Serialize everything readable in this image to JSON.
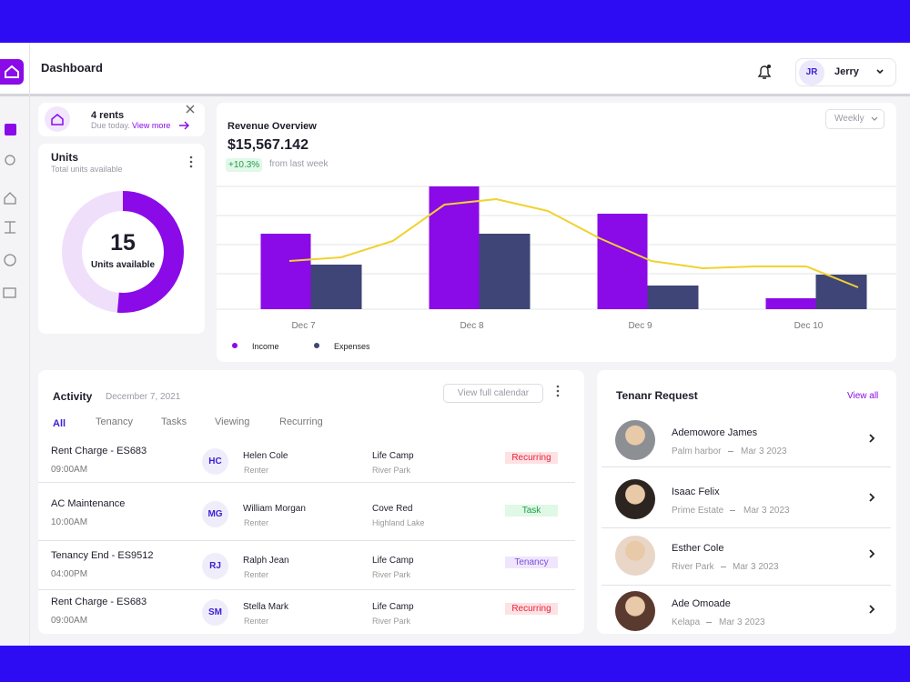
{
  "header": {
    "title": "Dashboard",
    "user_initials": "JR",
    "user_name": "Jerry"
  },
  "rent_notice": {
    "title": "4 rents",
    "subtitle": "Due today.",
    "link": "View more"
  },
  "units": {
    "title": "Units",
    "subtitle": "Total units available",
    "value": 15,
    "label": "Units available"
  },
  "revenue": {
    "title": "Revenue Overview",
    "total": "$15,567.142",
    "change": "+10.3%",
    "change_note": "from last week",
    "period": "Weekly",
    "chart_data": {
      "type": "bar",
      "categories": [
        "Dec 7",
        "Dec 8",
        "Dec 9",
        "Dec 10"
      ],
      "series": [
        {
          "name": "Income",
          "color": "#8a0ae8",
          "values": [
            83,
            135,
            105,
            12
          ]
        },
        {
          "name": "Expenses",
          "color": "#3f4576",
          "values": [
            49,
            83,
            26,
            38
          ]
        }
      ],
      "trend": {
        "color": "#f0d230",
        "values": [
          53,
          57,
          75,
          115,
          121,
          108,
          78,
          53,
          45,
          47,
          47,
          24
        ]
      },
      "ylim": [
        0,
        140
      ],
      "gridlines": [
        39,
        71,
        103,
        135
      ],
      "grid": true
    }
  },
  "activity": {
    "title": "Activity",
    "date": "December 7, 2021",
    "button": "View full calendar",
    "tabs": [
      "All",
      "Tenancy",
      "Tasks",
      "Viewing",
      "Recurring"
    ],
    "rows": [
      {
        "title": "Rent Charge - ES683",
        "time": "09:00AM",
        "initials": "HC",
        "person": "Helen Cole",
        "role": "Renter",
        "location": "Life Camp",
        "area": "River Park",
        "tag": "Recurring",
        "tag_color": "#e8243a",
        "tag_bg": "#fde1e3"
      },
      {
        "title": "AC Maintenance",
        "time": "10:00AM",
        "initials": "MG",
        "person": "William Morgan",
        "role": "Renter",
        "location": "Cove Red",
        "area": "Highland Lake",
        "tag": "Task",
        "tag_color": "#1f9d4a",
        "tag_bg": "#e0f8e6"
      },
      {
        "title": "Tenancy End - ES9512",
        "time": "04:00PM",
        "initials": "RJ",
        "person": "Ralph Jean",
        "role": "Renter",
        "location": "Life Camp",
        "area": "River Park",
        "tag": "Tenancy",
        "tag_color": "#7b4fd8",
        "tag_bg": "#efe6fd"
      },
      {
        "title": "Rent Charge - ES683",
        "time": "09:00AM",
        "initials": "SM",
        "person": "Stella Mark",
        "role": "Renter",
        "location": "Life Camp",
        "area": "River Park",
        "tag": "Recurring",
        "tag_color": "#e8243a",
        "tag_bg": "#fde1e3"
      }
    ]
  },
  "tenant_requests": {
    "title": "Tenanr Request",
    "link": "View all",
    "items": [
      {
        "name": "Ademowore James",
        "place": "Palm harbor",
        "date": "Mar 3 2023"
      },
      {
        "name": "Isaac Felix",
        "place": "Prime Estate",
        "date": "Mar 3 2023"
      },
      {
        "name": "Esther Cole",
        "place": "River Park",
        "date": "Mar 3 2023"
      },
      {
        "name": "Ade Omoade",
        "place": "Kelapa",
        "date": "Mar 3 2023"
      }
    ]
  }
}
